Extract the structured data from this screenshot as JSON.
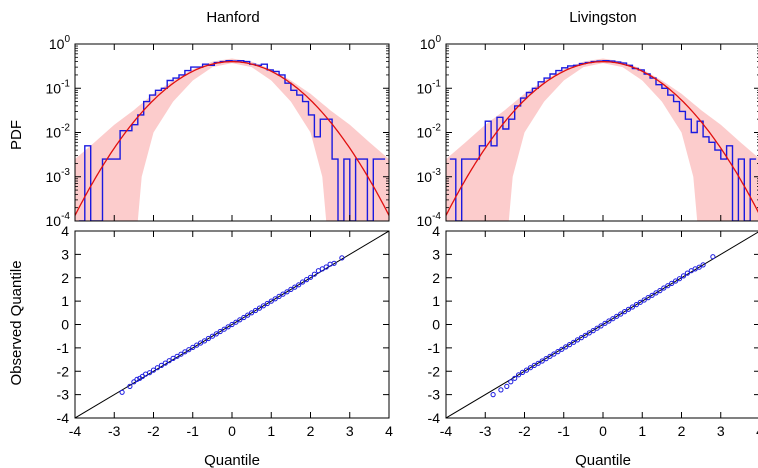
{
  "chart_data": [
    {
      "type": "line",
      "panel": "top-left",
      "title": "Hanford",
      "ylabel": "PDF",
      "xlim": [
        -4,
        4
      ],
      "ylim": [
        0.0001,
        1
      ],
      "yscale": "log",
      "x_tick_labels": [],
      "y_tick_labels": [
        {
          "base": "10",
          "exp": "0"
        },
        {
          "base": "10",
          "exp": "-1"
        },
        {
          "base": "10",
          "exp": "-2"
        },
        {
          "base": "10",
          "exp": "-3"
        },
        {
          "base": "10",
          "exp": "-4"
        }
      ],
      "histogram": {
        "edges": [
          -3.9,
          -3.75,
          -3.6,
          -3.45,
          -3.3,
          -3.15,
          -3.0,
          -2.85,
          -2.7,
          -2.55,
          -2.4,
          -2.25,
          -2.1,
          -1.95,
          -1.8,
          -1.65,
          -1.5,
          -1.35,
          -1.2,
          -1.05,
          -0.9,
          -0.75,
          -0.6,
          -0.45,
          -0.3,
          -0.15,
          0.0,
          0.15,
          0.3,
          0.45,
          0.6,
          0.75,
          0.9,
          1.05,
          1.2,
          1.35,
          1.5,
          1.65,
          1.8,
          1.95,
          2.1,
          2.25,
          2.4,
          2.55,
          2.7,
          2.85,
          3.0,
          3.15,
          3.3,
          3.45,
          3.6,
          3.75,
          3.9
        ],
        "values": [
          0.0001,
          0.005,
          0.0001,
          0.0001,
          0.0025,
          0.0025,
          0.0025,
          0.011,
          0.011,
          0.015,
          0.025,
          0.05,
          0.07,
          0.09,
          0.1,
          0.15,
          0.17,
          0.2,
          0.25,
          0.3,
          0.3,
          0.35,
          0.33,
          0.38,
          0.4,
          0.42,
          0.41,
          0.42,
          0.4,
          0.35,
          0.33,
          0.35,
          0.26,
          0.24,
          0.2,
          0.13,
          0.09,
          0.07,
          0.05,
          0.025,
          0.008,
          0.02,
          0.02,
          0.0025,
          0.0001,
          0.0025,
          0.0001,
          0.0025,
          0.0025,
          0.0001,
          0.0025,
          0.0025
        ]
      },
      "band": {
        "x": [
          -4.0,
          -3.5,
          -3.0,
          -2.5,
          -2.4,
          -2.3,
          -2.0,
          -1.5,
          -1.0,
          -0.5,
          0.0,
          0.5,
          1.0,
          1.5,
          2.0,
          2.3,
          2.4,
          2.5,
          3.0,
          3.5,
          4.0
        ],
        "upper": [
          0.0025,
          0.006,
          0.015,
          0.032,
          0.038,
          0.045,
          0.075,
          0.15,
          0.27,
          0.4,
          0.47,
          0.4,
          0.27,
          0.15,
          0.075,
          0.045,
          0.038,
          0.032,
          0.015,
          0.006,
          0.0025
        ],
        "lower": [
          0.0001,
          0.0001,
          0.0001,
          0.0001,
          0.0001,
          0.001,
          0.01,
          0.05,
          0.15,
          0.3,
          0.37,
          0.3,
          0.15,
          0.05,
          0.01,
          0.001,
          0.0001,
          0.0001,
          0.0001,
          0.0001,
          0.0001
        ]
      },
      "curve": "standard normal density"
    },
    {
      "type": "line",
      "panel": "top-right",
      "title": "Livingston",
      "ylabel": "",
      "xlim": [
        -4,
        4
      ],
      "ylim": [
        0.0001,
        1
      ],
      "yscale": "log",
      "x_tick_labels": [],
      "y_tick_labels": [
        {
          "base": "10",
          "exp": "0"
        },
        {
          "base": "10",
          "exp": "-1"
        },
        {
          "base": "10",
          "exp": "-2"
        },
        {
          "base": "10",
          "exp": "-3"
        },
        {
          "base": "10",
          "exp": "-4"
        }
      ],
      "histogram": {
        "edges": [
          -3.9,
          -3.75,
          -3.6,
          -3.45,
          -3.3,
          -3.15,
          -3.0,
          -2.85,
          -2.7,
          -2.55,
          -2.4,
          -2.25,
          -2.1,
          -1.95,
          -1.8,
          -1.65,
          -1.5,
          -1.35,
          -1.2,
          -1.05,
          -0.9,
          -0.75,
          -0.6,
          -0.45,
          -0.3,
          -0.15,
          0.0,
          0.15,
          0.3,
          0.45,
          0.6,
          0.75,
          0.9,
          1.05,
          1.2,
          1.35,
          1.5,
          1.65,
          1.8,
          1.95,
          2.1,
          2.25,
          2.4,
          2.55,
          2.7,
          2.85,
          3.0,
          3.15,
          3.3,
          3.45,
          3.6,
          3.75,
          3.9
        ],
        "values": [
          0.0025,
          0.0001,
          0.0025,
          0.0025,
          0.0025,
          0.005,
          0.018,
          0.005,
          0.022,
          0.012,
          0.02,
          0.04,
          0.06,
          0.08,
          0.1,
          0.14,
          0.17,
          0.21,
          0.25,
          0.29,
          0.32,
          0.33,
          0.36,
          0.38,
          0.4,
          0.41,
          0.42,
          0.41,
          0.39,
          0.37,
          0.33,
          0.28,
          0.26,
          0.21,
          0.17,
          0.12,
          0.1,
          0.07,
          0.05,
          0.03,
          0.02,
          0.01,
          0.018,
          0.008,
          0.006,
          0.004,
          0.0025,
          0.005,
          0.0001,
          0.0025,
          0.0001,
          0.0025
        ]
      },
      "band": {
        "x": [
          -4.0,
          -3.5,
          -3.0,
          -2.5,
          -2.4,
          -2.3,
          -2.0,
          -1.5,
          -1.0,
          -0.5,
          0.0,
          0.5,
          1.0,
          1.5,
          2.0,
          2.3,
          2.4,
          2.5,
          3.0,
          3.5,
          4.0
        ],
        "upper": [
          0.0025,
          0.006,
          0.015,
          0.032,
          0.038,
          0.045,
          0.075,
          0.15,
          0.27,
          0.4,
          0.47,
          0.4,
          0.27,
          0.15,
          0.075,
          0.045,
          0.038,
          0.032,
          0.015,
          0.006,
          0.0025
        ],
        "lower": [
          0.0001,
          0.0001,
          0.0001,
          0.0001,
          0.0001,
          0.001,
          0.01,
          0.05,
          0.15,
          0.3,
          0.37,
          0.3,
          0.15,
          0.05,
          0.01,
          0.001,
          0.0001,
          0.0001,
          0.0001,
          0.0001,
          0.0001
        ]
      },
      "curve": "standard normal density"
    },
    {
      "type": "scatter",
      "panel": "bottom-left",
      "xlabel": "Quantile",
      "ylabel": "Observed Quantile",
      "xlim": [
        -4,
        4
      ],
      "ylim": [
        -4,
        4
      ],
      "x_tick_labels": [
        "-4",
        "-3",
        "-2",
        "-1",
        "0",
        "1",
        "2",
        "3",
        "4"
      ],
      "y_tick_labels": [
        "4",
        "3",
        "2",
        "1",
        "0",
        "-1",
        "-2",
        "-3",
        "-4"
      ],
      "reference_line": {
        "x": [
          -4,
          4
        ],
        "y": [
          -4,
          4
        ]
      },
      "points": {
        "x": [
          -2.8,
          -2.6,
          -2.5,
          -2.42,
          -2.35,
          -2.28,
          -2.2,
          -2.1,
          -2.0,
          -1.9,
          -1.8,
          -1.7,
          -1.6,
          -1.5,
          -1.4,
          -1.3,
          -1.2,
          -1.1,
          -1.0,
          -0.9,
          -0.8,
          -0.7,
          -0.6,
          -0.5,
          -0.4,
          -0.3,
          -0.2,
          -0.1,
          0.0,
          0.1,
          0.2,
          0.3,
          0.4,
          0.5,
          0.6,
          0.7,
          0.8,
          0.9,
          1.0,
          1.1,
          1.2,
          1.3,
          1.4,
          1.5,
          1.6,
          1.7,
          1.8,
          1.9,
          2.0,
          2.1,
          2.2,
          2.3,
          2.4,
          2.5,
          2.6,
          2.8
        ],
        "y": [
          -2.9,
          -2.65,
          -2.45,
          -2.35,
          -2.3,
          -2.22,
          -2.12,
          -2.06,
          -1.95,
          -1.85,
          -1.75,
          -1.65,
          -1.55,
          -1.45,
          -1.36,
          -1.27,
          -1.17,
          -1.08,
          -0.98,
          -0.88,
          -0.79,
          -0.7,
          -0.6,
          -0.5,
          -0.4,
          -0.3,
          -0.2,
          -0.1,
          0.0,
          0.1,
          0.2,
          0.3,
          0.4,
          0.5,
          0.6,
          0.7,
          0.8,
          0.9,
          1.0,
          1.1,
          1.2,
          1.3,
          1.4,
          1.5,
          1.6,
          1.7,
          1.82,
          1.92,
          2.02,
          2.15,
          2.3,
          2.38,
          2.46,
          2.58,
          2.62,
          2.85
        ]
      }
    },
    {
      "type": "scatter",
      "panel": "bottom-right",
      "xlabel": "Quantile",
      "ylabel": "",
      "xlim": [
        -4,
        4
      ],
      "ylim": [
        -4,
        4
      ],
      "x_tick_labels": [
        "-4",
        "-3",
        "-2",
        "-1",
        "0",
        "1",
        "2",
        "3",
        "4"
      ],
      "y_tick_labels": [
        "4",
        "3",
        "2",
        "1",
        "0",
        "-1",
        "-2",
        "-3",
        "-4"
      ],
      "reference_line": {
        "x": [
          -4,
          4
        ],
        "y": [
          -4,
          4
        ]
      },
      "points": {
        "x": [
          -2.8,
          -2.6,
          -2.45,
          -2.35,
          -2.25,
          -2.15,
          -2.05,
          -1.95,
          -1.85,
          -1.75,
          -1.65,
          -1.55,
          -1.45,
          -1.35,
          -1.25,
          -1.15,
          -1.05,
          -0.95,
          -0.85,
          -0.75,
          -0.65,
          -0.55,
          -0.45,
          -0.35,
          -0.25,
          -0.15,
          -0.05,
          0.05,
          0.15,
          0.25,
          0.35,
          0.45,
          0.55,
          0.65,
          0.75,
          0.85,
          0.95,
          1.05,
          1.15,
          1.25,
          1.35,
          1.45,
          1.55,
          1.65,
          1.75,
          1.85,
          1.95,
          2.05,
          2.15,
          2.25,
          2.35,
          2.45,
          2.55,
          2.8
        ],
        "y": [
          -3.0,
          -2.8,
          -2.65,
          -2.45,
          -2.3,
          -2.15,
          -2.05,
          -1.95,
          -1.85,
          -1.75,
          -1.66,
          -1.56,
          -1.46,
          -1.36,
          -1.26,
          -1.16,
          -1.06,
          -0.96,
          -0.86,
          -0.76,
          -0.66,
          -0.56,
          -0.46,
          -0.36,
          -0.26,
          -0.16,
          -0.06,
          0.05,
          0.15,
          0.25,
          0.35,
          0.45,
          0.55,
          0.65,
          0.75,
          0.85,
          0.95,
          1.05,
          1.15,
          1.25,
          1.35,
          1.45,
          1.56,
          1.66,
          1.76,
          1.86,
          1.96,
          2.08,
          2.2,
          2.3,
          2.38,
          2.45,
          2.55,
          2.9
        ]
      }
    }
  ]
}
